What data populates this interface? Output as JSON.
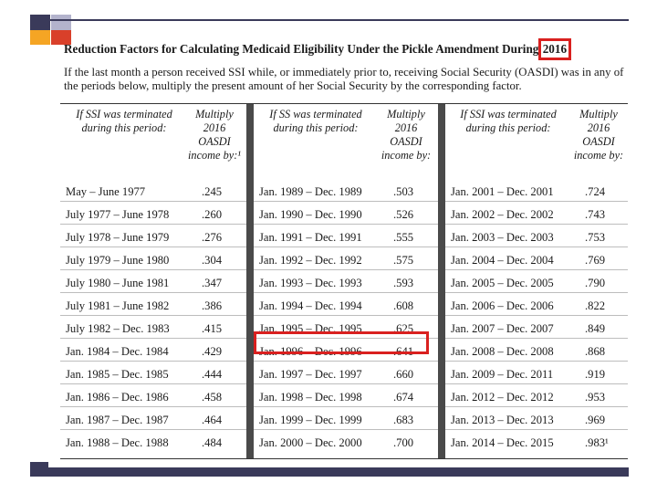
{
  "title_main": "Reduction Factors for Calculating Medicaid Eligibility Under the Pickle Amendment During ",
  "title_year": "2016",
  "intro": "If the last month a person received SSI while, or immediately prior to, receiving Social Security (OASDI) was in any of the periods below, multiply the present amount of her Social Security by the corresponding factor.",
  "headers": {
    "period1": "If SSI was terminated during this period:",
    "mult1": "Multiply 2016 OASDI income by:¹",
    "period2": "If SS was terminated during this period:",
    "mult2": "Multiply 2016 OASDI income by:",
    "period3": "If SSI was terminated during this period:",
    "mult3": "Multiply 2016 OASDI income by:"
  },
  "rows": [
    {
      "p1": "May – June 1977",
      "f1": ".245",
      "p2": "Jan. 1989 – Dec. 1989",
      "f2": ".503",
      "p3": "Jan. 2001 – Dec. 2001",
      "f3": ".724"
    },
    {
      "p1": "July 1977 – June 1978",
      "f1": ".260",
      "p2": "Jan. 1990 – Dec. 1990",
      "f2": ".526",
      "p3": "Jan. 2002 – Dec. 2002",
      "f3": ".743"
    },
    {
      "p1": "July 1978 – June 1979",
      "f1": ".276",
      "p2": "Jan. 1991 – Dec. 1991",
      "f2": ".555",
      "p3": "Jan. 2003 – Dec. 2003",
      "f3": ".753"
    },
    {
      "p1": "July 1979 – June 1980",
      "f1": ".304",
      "p2": "Jan. 1992 – Dec. 1992",
      "f2": ".575",
      "p3": "Jan. 2004 – Dec. 2004",
      "f3": ".769"
    },
    {
      "p1": "July 1980 – June 1981",
      "f1": ".347",
      "p2": "Jan. 1993 – Dec. 1993",
      "f2": ".593",
      "p3": "Jan. 2005 – Dec. 2005",
      "f3": ".790"
    },
    {
      "p1": "July 1981 – June 1982",
      "f1": ".386",
      "p2": "Jan. 1994 – Dec. 1994",
      "f2": ".608",
      "p3": "Jan. 2006 – Dec. 2006",
      "f3": ".822"
    },
    {
      "p1": "July 1982 – Dec. 1983",
      "f1": ".415",
      "p2": "Jan. 1995 – Dec. 1995",
      "f2": ".625",
      "p3": "Jan. 2007 – Dec. 2007",
      "f3": ".849"
    },
    {
      "p1": "Jan. 1984 – Dec. 1984",
      "f1": ".429",
      "p2": "Jan. 1996 – Dec. 1996",
      "f2": ".641",
      "p3": "Jan. 2008 – Dec. 2008",
      "f3": ".868"
    },
    {
      "p1": "Jan. 1985 – Dec. 1985",
      "f1": ".444",
      "p2": "Jan. 1997 – Dec. 1997",
      "f2": ".660",
      "p3": "Jan. 2009 – Dec. 2011",
      "f3": ".919"
    },
    {
      "p1": "Jan. 1986 – Dec. 1986",
      "f1": ".458",
      "p2": "Jan. 1998 – Dec. 1998",
      "f2": ".674",
      "p3": "Jan. 2012 – Dec. 2012",
      "f3": ".953"
    },
    {
      "p1": "Jan. 1987 – Dec. 1987",
      "f1": ".464",
      "p2": "Jan. 1999 – Dec. 1999",
      "f2": ".683",
      "p3": "Jan. 2013 – Dec. 2013",
      "f3": ".969"
    },
    {
      "p1": "Jan. 1988 – Dec. 1988",
      "f1": ".484",
      "p2": "Jan. 2000 – Dec. 2000",
      "f2": ".700",
      "p3": "Jan. 2014 – Dec. 2015",
      "f3": ".983¹"
    }
  ],
  "colors": {
    "accent_orange": "#f5a524",
    "accent_red": "#d9402a",
    "accent_lavender": "#b3b3cc",
    "accent_navy": "#3a3a5a",
    "highlight_red": "#d9201f"
  }
}
